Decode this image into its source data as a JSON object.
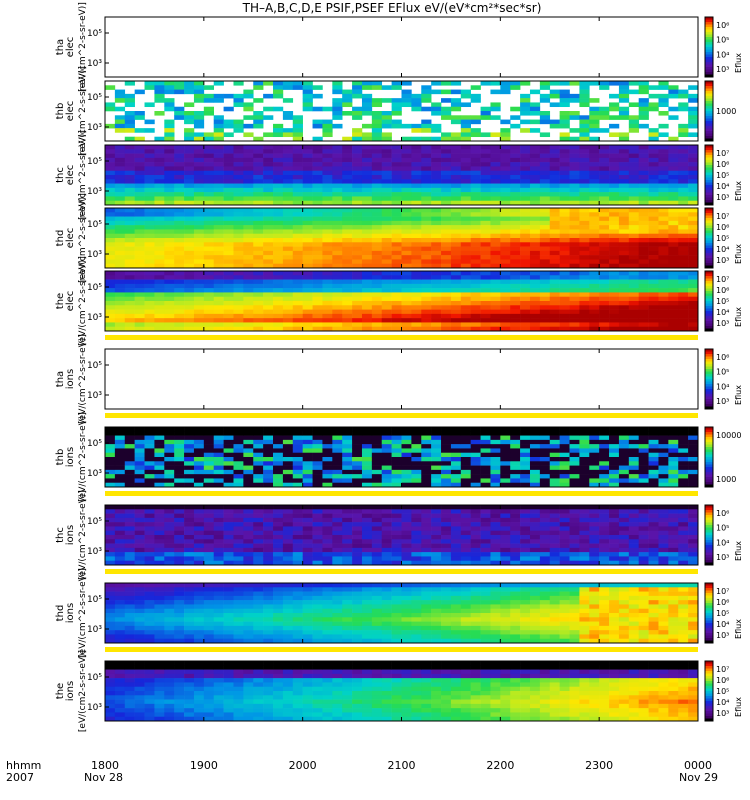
{
  "title": "TH–A,B,C,D,E PSIF,PSEF EFlux eV/(eV*cm²*sec*sr)",
  "chart_data": {
    "type": "heatmap",
    "x_axis": {
      "ticks": [
        "1800",
        "1900",
        "2000",
        "2100",
        "2200",
        "2300",
        "0000"
      ],
      "start_date": "Nov 28",
      "end_date": "Nov 29",
      "format_label": "hhmm",
      "year_label": "2007"
    },
    "colormap": "rainbow (purple-blue-cyan-green-yellow-red)",
    "panels": [
      {
        "probe": "tha",
        "species": "elec",
        "ylabel": "[eV/(cm^2-s-sr-eV)]",
        "yticks": [
          "10⁵",
          "10³"
        ],
        "cbar_label": "Eflux",
        "cbar_ticks": [
          "10⁶",
          "10⁵",
          "10⁴",
          "10³"
        ],
        "yellow_bar": false,
        "field": "empty"
      },
      {
        "probe": "thb",
        "species": "elec",
        "ylabel": "[eV/(cm^2-s-sr-eV)]",
        "yticks": [
          "10⁵",
          "10³"
        ],
        "cbar_label": "",
        "cbar_ticks": [
          "1000"
        ],
        "yellow_bar": false,
        "field": "noisy-green"
      },
      {
        "probe": "thc",
        "species": "elec",
        "ylabel": "[eV/(cm^2-s-sr-eV)]",
        "yticks": [
          "10⁵",
          "10³"
        ],
        "cbar_label": "Eflux",
        "cbar_ticks": [
          "10⁷",
          "10⁶",
          "10⁵",
          "10⁴",
          "10³"
        ],
        "yellow_bar": false,
        "field": "dark-low"
      },
      {
        "probe": "thd",
        "species": "elec",
        "ylabel": "[eV/(cm^2-s-sr-eV)]",
        "yticks": [
          "10⁵",
          "10³"
        ],
        "cbar_label": "Eflux",
        "cbar_ticks": [
          "10⁷",
          "10⁶",
          "10⁵",
          "10⁴",
          "10³"
        ],
        "yellow_bar": false,
        "field": "hot-elec"
      },
      {
        "probe": "the",
        "species": "elec",
        "ylabel": "[eV/(cm^2-s-sr-eV)]",
        "yticks": [
          "10⁵",
          "10³"
        ],
        "cbar_label": "Eflux",
        "cbar_ticks": [
          "10⁷",
          "10⁶",
          "10⁵",
          "10⁴",
          "10³"
        ],
        "yellow_bar": true,
        "field": "hot-elec-2"
      },
      {
        "probe": "tha",
        "species": "ions",
        "ylabel": "[eV/(cm^2-s-sr-eV)]",
        "yticks": [
          "10⁵",
          "10³"
        ],
        "cbar_label": "Eflux",
        "cbar_ticks": [
          "10⁶",
          "10⁵",
          "10⁴",
          "10³"
        ],
        "yellow_bar": true,
        "field": "empty"
      },
      {
        "probe": "thb",
        "species": "ions",
        "ylabel": "[eV/(cm^2-s-sr-eV)]",
        "yticks": [
          "10⁵",
          "10³"
        ],
        "cbar_label": "",
        "cbar_ticks": [
          "10000",
          "1000"
        ],
        "yellow_bar": true,
        "field": "noisy-ions"
      },
      {
        "probe": "thc",
        "species": "ions",
        "ylabel": "[eV/(cm^2-s-sr-eV)]",
        "yticks": [
          "10⁵",
          "10³"
        ],
        "cbar_label": "Eflux",
        "cbar_ticks": [
          "10⁶",
          "10⁵",
          "10⁴",
          "10³"
        ],
        "yellow_bar": true,
        "field": "dark-ions"
      },
      {
        "probe": "thd",
        "species": "ions",
        "ylabel": "[eV/(cm^2-s-sr-eV)]",
        "yticks": [
          "10⁵",
          "10³"
        ],
        "cbar_label": "Eflux",
        "cbar_ticks": [
          "10⁷",
          "10⁶",
          "10⁵",
          "10⁴",
          "10³"
        ],
        "yellow_bar": true,
        "field": "hot-ions"
      },
      {
        "probe": "the",
        "species": "ions",
        "ylabel": "[eV/(cm2-s-sr-eV)]",
        "yticks": [
          "10⁵",
          "10³"
        ],
        "cbar_label": "Eflux",
        "cbar_ticks": [
          "10⁷",
          "10⁶",
          "10⁵",
          "10⁴",
          "10³"
        ],
        "yellow_bar": false,
        "field": "hot-ions-2"
      }
    ]
  }
}
